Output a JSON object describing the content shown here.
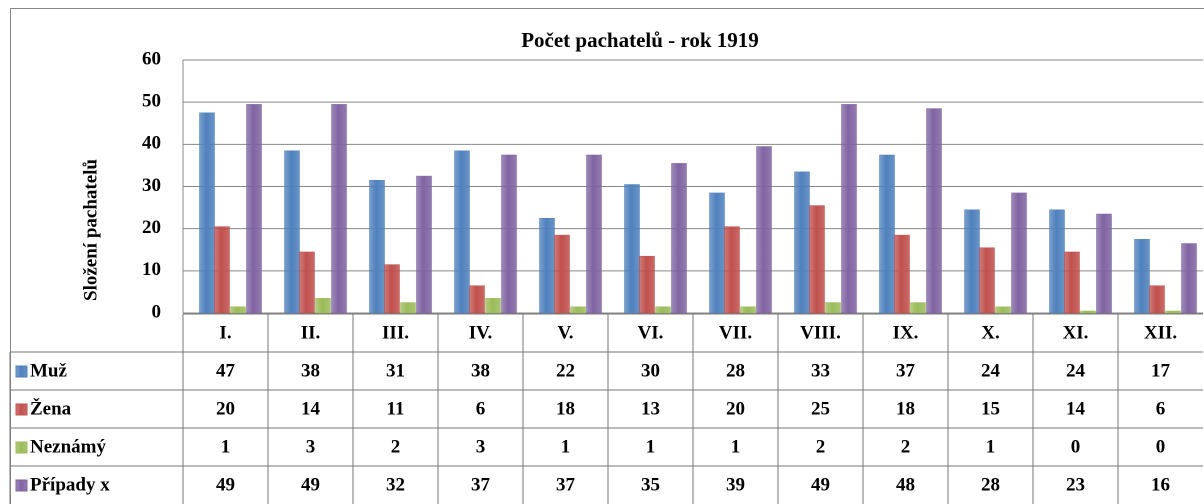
{
  "chart_data": {
    "type": "bar",
    "title": "Počet pachatelů - rok 1919",
    "y_label": "Složení pachatelů",
    "categories": [
      "I.",
      "II.",
      "III.",
      "IV.",
      "V.",
      "VI.",
      "VII.",
      "VIII.",
      "IX.",
      "X.",
      "XI.",
      "XII."
    ],
    "series": [
      {
        "name": "Muž",
        "color": "#4f81bd",
        "values": [
          47,
          38,
          31,
          38,
          22,
          30,
          28,
          33,
          37,
          24,
          24,
          17
        ]
      },
      {
        "name": "Žena",
        "color": "#c0504d",
        "values": [
          20,
          14,
          11,
          6,
          18,
          13,
          20,
          25,
          18,
          15,
          14,
          6
        ]
      },
      {
        "name": "Neznámý",
        "color": "#9bbb59",
        "values": [
          1,
          3,
          2,
          3,
          1,
          1,
          1,
          2,
          2,
          1,
          0,
          0
        ]
      },
      {
        "name": "Případy x",
        "color": "#8064a2",
        "values": [
          49,
          49,
          32,
          37,
          37,
          35,
          39,
          49,
          48,
          28,
          23,
          16
        ]
      }
    ],
    "ylim": [
      0,
      60
    ],
    "yticks": [
      0,
      10,
      20,
      30,
      40,
      50,
      60
    ],
    "grid": true
  }
}
